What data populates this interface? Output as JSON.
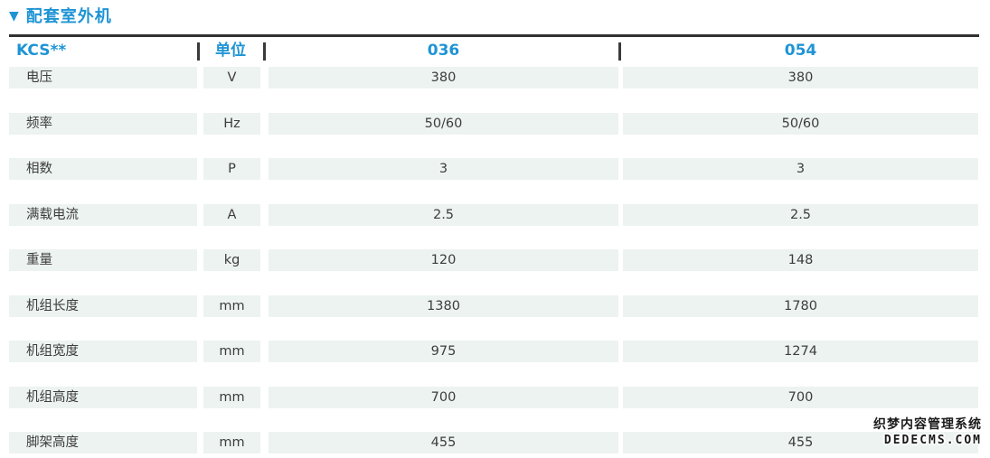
{
  "title": {
    "marker": "▼",
    "text": "配套室外机"
  },
  "colors": {
    "accent": "#1e94d4",
    "row_bg": "#ecf3f1",
    "rule": "#313131",
    "cell_text": "#3d3d3d"
  },
  "table": {
    "header": {
      "model": "KCS**",
      "unit": "单位",
      "col1": "036",
      "col2": "054"
    },
    "rows": [
      {
        "label": "电压",
        "unit": "V",
        "v036": "380",
        "v054": "380"
      },
      {
        "label": "频率",
        "unit": "Hz",
        "v036": "50/60",
        "v054": "50/60"
      },
      {
        "label": "相数",
        "unit": "P",
        "v036": "3",
        "v054": "3"
      },
      {
        "label": "满载电流",
        "unit": "A",
        "v036": "2.5",
        "v054": "2.5"
      },
      {
        "label": "重量",
        "unit": "kg",
        "v036": "120",
        "v054": "148"
      },
      {
        "label": "机组长度",
        "unit": "mm",
        "v036": "1380",
        "v054": "1780"
      },
      {
        "label": "机组宽度",
        "unit": "mm",
        "v036": "975",
        "v054": "1274"
      },
      {
        "label": "机组高度",
        "unit": "mm",
        "v036": "700",
        "v054": "700"
      },
      {
        "label": "脚架高度",
        "unit": "mm",
        "v036": "455",
        "v054": "455"
      }
    ]
  },
  "watermark": {
    "line1": "织梦内容管理系统",
    "line2": "DEDECMS.COM"
  }
}
